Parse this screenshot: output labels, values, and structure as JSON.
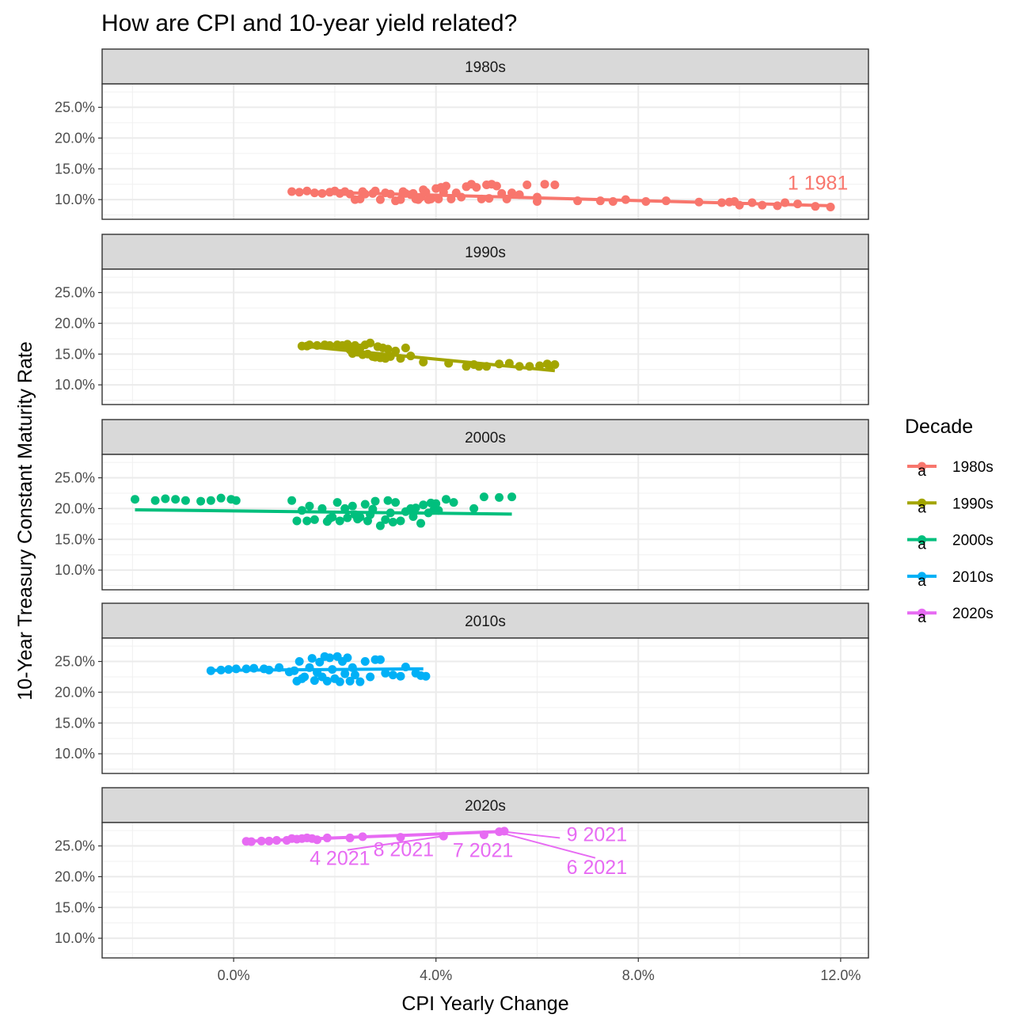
{
  "chart_data": {
    "type": "scatter",
    "title": "How are CPI and 10-year yield related?",
    "xlabel": "CPI Yearly Change",
    "ylabel": "10-Year Treasury Constant Maturity Rate",
    "xlim": [
      -0.026,
      0.1255
    ],
    "ylim": [
      0.068,
      0.288
    ],
    "x_ticks": [
      0,
      0.04,
      0.08,
      0.12
    ],
    "x_tick_labels": [
      "0.0%",
      "4.0%",
      "8.0%",
      "12.0%"
    ],
    "y_ticks": [
      0.1,
      0.15,
      0.2,
      0.25
    ],
    "y_tick_labels": [
      "10.0%",
      "15.0%",
      "20.0%",
      "25.0%"
    ],
    "grid": true,
    "legend": {
      "title": "Decade",
      "position": "right",
      "key_glyph": "a",
      "entries": [
        "1980s",
        "1990s",
        "2000s",
        "2010s",
        "2020s"
      ]
    },
    "colors": {
      "1980s": "#F8766D",
      "1990s": "#A3A500",
      "2000s": "#00BF7D",
      "2010s": "#00B0F6",
      "2020s": "#E76BF3"
    },
    "panels": [
      {
        "label": "1980s",
        "color": "#F8766D",
        "fit": [
          [
            0.0115,
            0.1135
          ],
          [
            0.118,
            0.09
          ]
        ],
        "x": [
          0.0115,
          0.013,
          0.0145,
          0.016,
          0.0175,
          0.019,
          0.02,
          0.021,
          0.022,
          0.023,
          0.024,
          0.025,
          0.0255,
          0.026,
          0.0275,
          0.028,
          0.029,
          0.03,
          0.031,
          0.032,
          0.033,
          0.0335,
          0.034,
          0.035,
          0.0355,
          0.036,
          0.0365,
          0.037,
          0.0375,
          0.038,
          0.0385,
          0.039,
          0.04,
          0.0405,
          0.041,
          0.0415,
          0.042,
          0.043,
          0.044,
          0.045,
          0.046,
          0.047,
          0.048,
          0.049,
          0.05,
          0.0505,
          0.051,
          0.052,
          0.053,
          0.054,
          0.055,
          0.0565,
          0.058,
          0.06,
          0.0615,
          0.06,
          0.0635,
          0.068,
          0.0725,
          0.075,
          0.0775,
          0.0815,
          0.0855,
          0.092,
          0.099,
          0.0965,
          0.098,
          0.1,
          0.1025,
          0.1045,
          0.1075,
          0.109,
          0.1115,
          0.115,
          0.118
        ],
        "y": [
          0.113,
          0.112,
          0.114,
          0.111,
          0.11,
          0.112,
          0.114,
          0.11,
          0.113,
          0.109,
          0.1,
          0.101,
          0.113,
          0.109,
          0.11,
          0.114,
          0.1,
          0.111,
          0.109,
          0.098,
          0.1,
          0.113,
          0.11,
          0.108,
          0.11,
          0.101,
          0.1,
          0.104,
          0.116,
          0.112,
          0.1,
          0.101,
          0.118,
          0.101,
          0.12,
          0.112,
          0.122,
          0.101,
          0.111,
          0.104,
          0.121,
          0.125,
          0.12,
          0.101,
          0.124,
          0.102,
          0.125,
          0.122,
          0.11,
          0.101,
          0.111,
          0.108,
          0.124,
          0.097,
          0.125,
          0.104,
          0.124,
          0.098,
          0.098,
          0.097,
          0.1,
          0.097,
          0.098,
          0.096,
          0.097,
          0.095,
          0.096,
          0.091,
          0.095,
          0.091,
          0.09,
          0.095,
          0.093,
          0.089,
          0.088
        ],
        "annotations": [
          {
            "text": "1 1981",
            "x": 0.1155,
            "y": 0.1165,
            "anchor": "middle",
            "segment": null
          }
        ]
      },
      {
        "label": "1990s",
        "color": "#A3A500",
        "fit": [
          [
            0.0135,
            0.163
          ],
          [
            0.0635,
            0.123
          ]
        ],
        "x": [
          0.0135,
          0.0145,
          0.015,
          0.0165,
          0.018,
          0.019,
          0.0205,
          0.0215,
          0.022,
          0.0225,
          0.023,
          0.0235,
          0.024,
          0.0245,
          0.025,
          0.0255,
          0.026,
          0.0265,
          0.027,
          0.0275,
          0.028,
          0.0285,
          0.029,
          0.0295,
          0.03,
          0.0305,
          0.031,
          0.032,
          0.033,
          0.034,
          0.035,
          0.0375,
          0.0425,
          0.046,
          0.0475,
          0.0485,
          0.05,
          0.0525,
          0.0545,
          0.0565,
          0.0585,
          0.0605,
          0.062,
          0.0625,
          0.0635
        ],
        "y": [
          0.163,
          0.163,
          0.165,
          0.164,
          0.165,
          0.164,
          0.165,
          0.164,
          0.162,
          0.166,
          0.157,
          0.151,
          0.164,
          0.153,
          0.16,
          0.149,
          0.165,
          0.15,
          0.168,
          0.146,
          0.145,
          0.162,
          0.144,
          0.16,
          0.143,
          0.158,
          0.146,
          0.155,
          0.143,
          0.16,
          0.147,
          0.137,
          0.135,
          0.13,
          0.133,
          0.13,
          0.13,
          0.134,
          0.135,
          0.13,
          0.13,
          0.131,
          0.134,
          0.13,
          0.133
        ],
        "annotations": []
      },
      {
        "label": "2000s",
        "color": "#00BF7D",
        "fit": [
          [
            -0.0195,
            0.198
          ],
          [
            0.055,
            0.191
          ]
        ],
        "x": [
          -0.0195,
          -0.0155,
          -0.0135,
          -0.0115,
          -0.0095,
          -0.0065,
          -0.0045,
          -0.0025,
          -0.0005,
          0.0005,
          0.0115,
          0.0125,
          0.0135,
          0.0145,
          0.015,
          0.016,
          0.0175,
          0.0185,
          0.019,
          0.0195,
          0.0205,
          0.021,
          0.022,
          0.0225,
          0.0235,
          0.024,
          0.0245,
          0.025,
          0.026,
          0.0265,
          0.027,
          0.0275,
          0.028,
          0.029,
          0.03,
          0.0305,
          0.031,
          0.0315,
          0.032,
          0.033,
          0.034,
          0.035,
          0.0355,
          0.036,
          0.037,
          0.0375,
          0.0385,
          0.039,
          0.0395,
          0.04,
          0.0405,
          0.042,
          0.0435,
          0.0475,
          0.0495,
          0.0525,
          0.055
        ],
        "y": [
          0.215,
          0.213,
          0.216,
          0.215,
          0.213,
          0.212,
          0.213,
          0.217,
          0.215,
          0.213,
          0.213,
          0.18,
          0.197,
          0.18,
          0.204,
          0.182,
          0.2,
          0.179,
          0.184,
          0.186,
          0.21,
          0.18,
          0.2,
          0.185,
          0.204,
          0.19,
          0.183,
          0.186,
          0.207,
          0.18,
          0.19,
          0.199,
          0.212,
          0.172,
          0.182,
          0.213,
          0.193,
          0.178,
          0.21,
          0.18,
          0.195,
          0.2,
          0.187,
          0.201,
          0.176,
          0.206,
          0.193,
          0.209,
          0.197,
          0.208,
          0.197,
          0.215,
          0.21,
          0.2,
          0.219,
          0.218,
          0.219
        ],
        "annotations": []
      },
      {
        "label": "2010s",
        "color": "#00B0F6",
        "fit": [
          [
            -0.0045,
            0.2355
          ],
          [
            0.0375,
            0.238
          ]
        ],
        "x": [
          -0.0045,
          -0.0025,
          -0.001,
          0.0005,
          0.0025,
          0.004,
          0.006,
          0.007,
          0.009,
          0.011,
          0.012,
          0.0125,
          0.013,
          0.0135,
          0.014,
          0.015,
          0.0155,
          0.016,
          0.0165,
          0.017,
          0.0175,
          0.018,
          0.0185,
          0.019,
          0.0195,
          0.02,
          0.0205,
          0.021,
          0.0215,
          0.022,
          0.0225,
          0.023,
          0.0235,
          0.024,
          0.025,
          0.026,
          0.027,
          0.028,
          0.029,
          0.03,
          0.0315,
          0.033,
          0.034,
          0.036,
          0.037,
          0.038
        ],
        "y": [
          0.235,
          0.236,
          0.237,
          0.238,
          0.238,
          0.239,
          0.238,
          0.236,
          0.24,
          0.233,
          0.235,
          0.218,
          0.25,
          0.222,
          0.225,
          0.24,
          0.255,
          0.219,
          0.232,
          0.249,
          0.225,
          0.258,
          0.218,
          0.256,
          0.237,
          0.222,
          0.258,
          0.217,
          0.25,
          0.23,
          0.256,
          0.218,
          0.24,
          0.228,
          0.217,
          0.25,
          0.225,
          0.253,
          0.253,
          0.231,
          0.228,
          0.226,
          0.241,
          0.231,
          0.227,
          0.226
        ],
        "annotations": []
      },
      {
        "label": "2020s",
        "color": "#E76BF3",
        "fit": [
          [
            0.0025,
            0.2575
          ],
          [
            0.0535,
            0.2735
          ]
        ],
        "x": [
          0.0025,
          0.0035,
          0.0055,
          0.007,
          0.0085,
          0.0105,
          0.0115,
          0.0125,
          0.0135,
          0.0145,
          0.0155,
          0.0165,
          0.0185,
          0.023,
          0.0255,
          0.033,
          0.0415,
          0.0495,
          0.0525,
          0.0535
        ],
        "y": [
          0.2575,
          0.257,
          0.258,
          0.258,
          0.259,
          0.259,
          0.262,
          0.261,
          0.262,
          0.263,
          0.262,
          0.26,
          0.263,
          0.263,
          0.265,
          0.264,
          0.266,
          0.268,
          0.273,
          0.274
        ],
        "annotations": [
          {
            "text": "4 2021",
            "x": 0.021,
            "y": 0.219,
            "anchor": "middle",
            "segment": [
              [
                0.0225,
                0.2435
              ],
              [
                0.0415,
                0.266
              ]
            ]
          },
          {
            "text": "8 2021",
            "x": 0.0336,
            "y": 0.2335,
            "anchor": "middle",
            "segment": null
          },
          {
            "text": "7 2021",
            "x": 0.0493,
            "y": 0.232,
            "anchor": "middle",
            "segment": null
          },
          {
            "text": "9 2021",
            "x": 0.0718,
            "y": 0.2575,
            "anchor": "middle",
            "segment": [
              [
                0.0535,
                0.273
              ],
              [
                0.0645,
                0.263
              ]
            ]
          },
          {
            "text": "6 2021",
            "x": 0.0718,
            "y": 0.2045,
            "anchor": "middle",
            "segment": [
              [
                0.0525,
                0.272
              ],
              [
                0.0715,
                0.2305
              ]
            ]
          }
        ]
      }
    ]
  }
}
